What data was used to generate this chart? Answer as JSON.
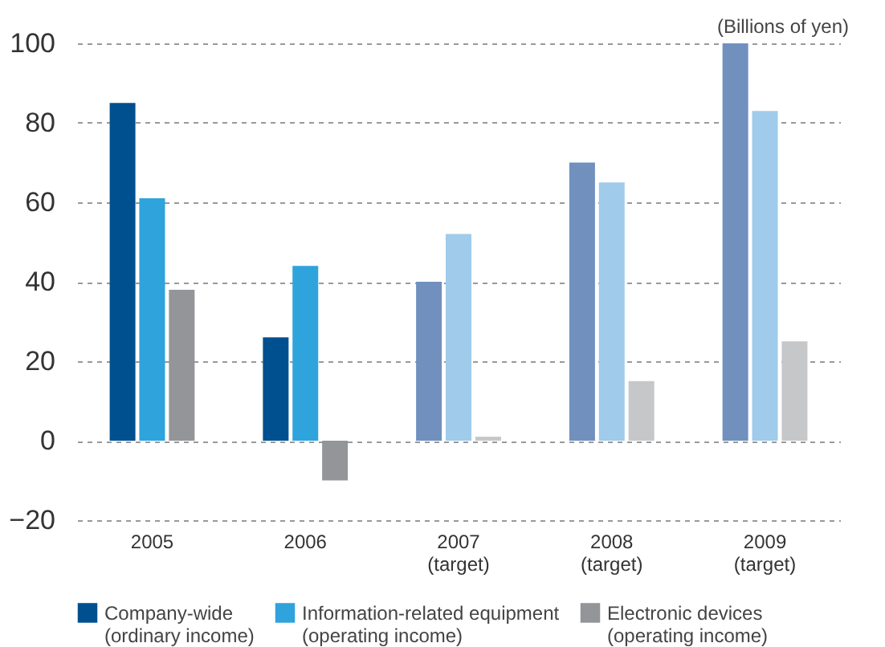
{
  "chart_data": {
    "type": "bar",
    "ylabel": "(Billions of yen)",
    "categories": [
      "2005",
      "2006",
      "2007\n(target)",
      "2008\n(target)",
      "2009\n(target)"
    ],
    "series": [
      {
        "name": "Company-wide\n(ordinary income)",
        "color": "#00508f",
        "colors": [
          "#00508f",
          "#00508f",
          "#7190be",
          "#7190be",
          "#7190be"
        ],
        "values": [
          85,
          26,
          40,
          70,
          100
        ]
      },
      {
        "name": "Information-related equipment\n(operating income)",
        "color": "#2fa3dc",
        "colors": [
          "#2fa3dc",
          "#2fa3dc",
          "#a0cbea",
          "#a0cbea",
          "#a0cbea"
        ],
        "values": [
          61,
          44,
          52,
          65,
          83
        ]
      },
      {
        "name": "Electronic devices\n(operating income)",
        "color": "#939598",
        "colors": [
          "#939598",
          "#939598",
          "#c6c7c9",
          "#c6c7c9",
          "#c6c7c9"
        ],
        "values": [
          38,
          -10,
          1,
          15,
          25
        ]
      }
    ],
    "ylim": [
      -20,
      100
    ],
    "yticks": [
      {
        "value": -20,
        "label": "−20"
      },
      0,
      20,
      40,
      60,
      80,
      100
    ],
    "grid": "y",
    "legend": "bottom"
  }
}
